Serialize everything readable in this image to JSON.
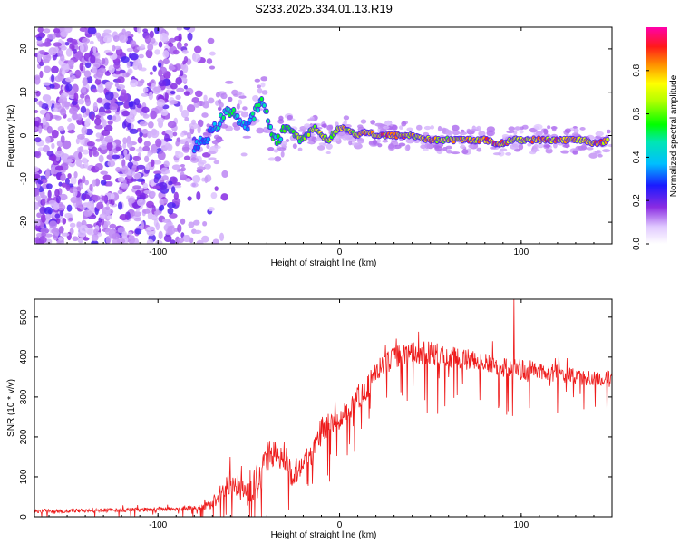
{
  "chart_data": [
    {
      "type": "heatmap",
      "title": "S233.2025.334.01.13.R19",
      "xlabel": "Height of straight line (km)",
      "ylabel": "Frequency (Hz)",
      "xlim": [
        -168,
        150
      ],
      "ylim": [
        -25,
        25
      ],
      "xticks": [
        -100,
        0,
        100
      ],
      "yticks": [
        20,
        10,
        0,
        -10,
        -20
      ],
      "ytick_labels": [
        "20",
        "10",
        "0",
        "-10",
        "-20"
      ],
      "colorbar": {
        "label": "Normalized spectral amplitude",
        "range": [
          0,
          1
        ],
        "ticks": [
          0.0,
          0.2,
          0.4,
          0.6,
          0.8
        ],
        "tick_labels": [
          "0.0",
          "0.2",
          "0.4",
          "0.6",
          "0.8"
        ]
      },
      "ridge_trace": {
        "x": [
          -80,
          -72,
          -68,
          -63,
          -58,
          -55,
          -50,
          -46,
          -42,
          -38,
          -34,
          -30,
          -26,
          -22,
          -18,
          -14,
          -10,
          -6,
          -2,
          2,
          6,
          10,
          15,
          20,
          30,
          40,
          50,
          60,
          70,
          80,
          88,
          95,
          105,
          115,
          125,
          135,
          142,
          148
        ],
        "y": [
          -3,
          0,
          2,
          5,
          6,
          3,
          2,
          6,
          8,
          1,
          -1,
          2,
          1,
          -1,
          0,
          2,
          0,
          -1,
          1,
          2,
          1,
          0,
          1,
          0,
          0,
          0,
          -1,
          -1,
          -1,
          -1,
          -2,
          -1,
          -1,
          -1,
          -1,
          -1,
          -2,
          -1
        ],
        "amplitude": [
          0.35,
          0.4,
          0.45,
          0.5,
          0.55,
          0.45,
          0.4,
          0.55,
          0.5,
          0.6,
          0.55,
          0.6,
          0.7,
          0.65,
          0.6,
          0.7,
          0.75,
          0.7,
          0.75,
          0.8,
          0.75,
          0.8,
          0.85,
          0.9,
          0.9,
          0.85,
          0.85,
          0.8,
          0.85,
          0.9,
          0.9,
          0.8,
          0.85,
          0.9,
          0.85,
          0.8,
          0.9,
          0.85
        ]
      }
    },
    {
      "type": "line",
      "xlabel": "Height of straight line (km)",
      "ylabel": "SNR (10 * v/v)",
      "xlim": [
        -168,
        150
      ],
      "ylim": [
        0,
        545
      ],
      "xticks": [
        -100,
        0,
        100
      ],
      "yticks": [
        0,
        100,
        200,
        300,
        400,
        500
      ],
      "color": "#ee1c1c",
      "envelope": {
        "x": [
          -168,
          -140,
          -110,
          -90,
          -80,
          -75,
          -70,
          -65,
          -60,
          -55,
          -50,
          -45,
          -40,
          -35,
          -30,
          -25,
          -20,
          -15,
          -10,
          -5,
          0,
          5,
          10,
          15,
          20,
          25,
          30,
          40,
          50,
          60,
          70,
          80,
          90,
          100,
          110,
          120,
          130,
          140,
          150
        ],
        "base": [
          15,
          15,
          18,
          20,
          22,
          25,
          35,
          60,
          90,
          70,
          60,
          90,
          150,
          160,
          120,
          110,
          140,
          160,
          220,
          230,
          240,
          270,
          300,
          320,
          360,
          380,
          400,
          410,
          410,
          400,
          395,
          385,
          375,
          370,
          365,
          360,
          350,
          345,
          345
        ],
        "spread": [
          10,
          10,
          10,
          12,
          12,
          15,
          30,
          50,
          60,
          60,
          70,
          90,
          80,
          70,
          70,
          70,
          60,
          60,
          60,
          60,
          50,
          60,
          60,
          60,
          60,
          55,
          55,
          55,
          60,
          55,
          55,
          50,
          50,
          55,
          45,
          45,
          40,
          40,
          40
        ]
      },
      "peak": {
        "x": 96,
        "y": 545
      }
    }
  ]
}
